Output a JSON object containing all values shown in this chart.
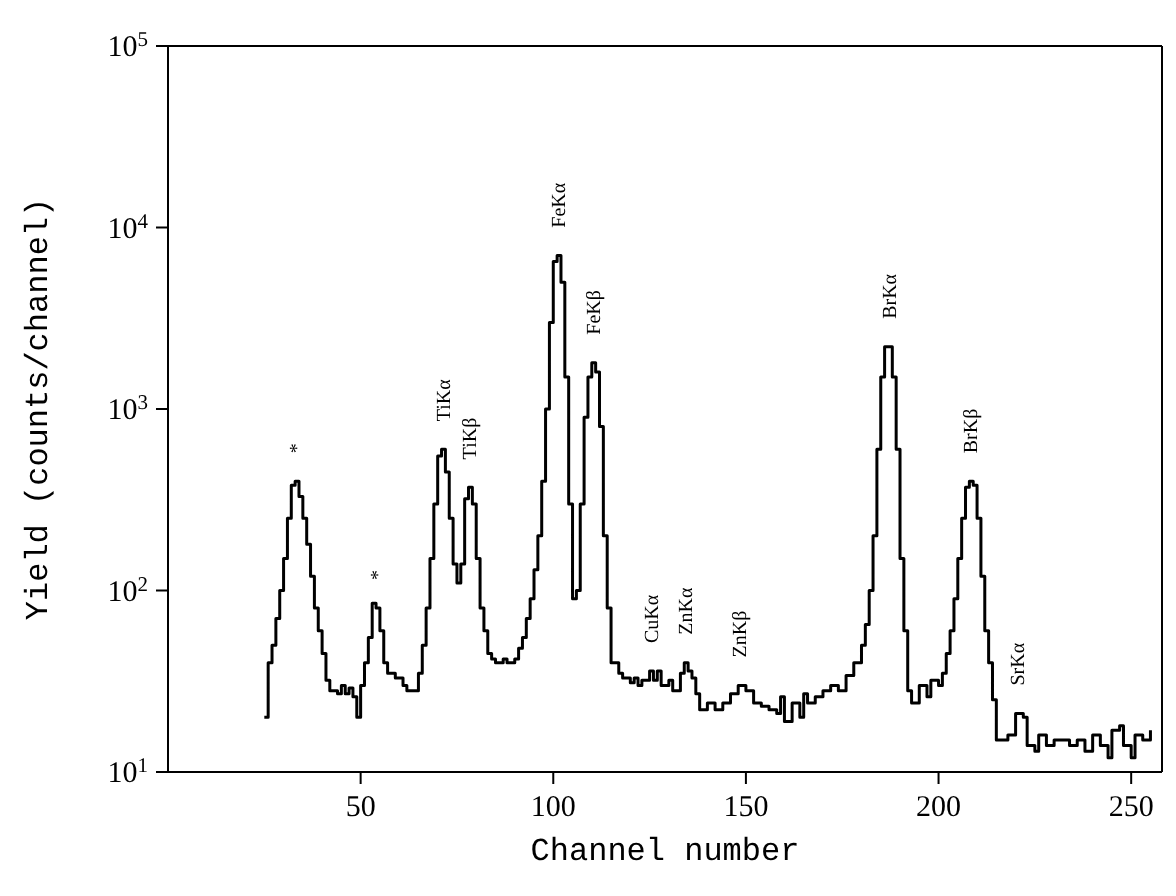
{
  "chart_data": {
    "type": "step",
    "xlabel": "Channel number",
    "ylabel": "Yield (counts/channel)",
    "log": "y",
    "marker": "none",
    "line_style": "solid",
    "xlim": [
      0,
      258
    ],
    "xticks": [
      50,
      100,
      150,
      200,
      250
    ],
    "ylim": [
      10,
      100000
    ],
    "yticks": [
      {
        "value": 10,
        "label": "10$^{1}$"
      },
      {
        "value": 100,
        "label": "10$^{2}$"
      },
      {
        "value": 1000,
        "label": "10$^{3}$"
      },
      {
        "value": 10000,
        "label": "10$^{4}$"
      },
      {
        "value": 100000,
        "label": "10$^{5}$"
      }
    ],
    "series": [
      {
        "color": "#000000",
        "x": [
          25,
          26,
          27,
          28,
          29,
          30,
          31,
          32,
          33,
          34,
          35,
          36,
          37,
          38,
          39,
          40,
          41,
          42,
          44,
          45,
          46,
          47,
          48,
          49,
          50,
          51,
          52,
          53,
          54,
          55,
          56,
          57,
          59,
          61,
          62,
          64,
          65,
          66,
          67,
          68,
          69,
          70,
          71,
          72,
          73,
          74,
          75,
          76,
          77,
          78,
          79,
          80,
          81,
          82,
          83,
          84,
          85,
          87,
          88,
          90,
          91,
          92,
          93,
          94,
          95,
          96,
          97,
          98,
          99,
          100,
          101,
          102,
          103,
          104,
          105,
          106,
          107,
          108,
          109,
          110,
          111,
          112,
          113,
          114,
          115,
          117,
          118,
          120,
          121,
          122,
          123,
          125,
          126,
          127,
          128,
          130,
          131,
          133,
          134,
          135,
          136,
          137,
          138,
          140,
          142,
          144,
          146,
          148,
          150,
          152,
          154,
          156,
          158,
          159,
          160,
          162,
          164,
          165,
          166,
          168,
          170,
          172,
          174,
          176,
          178,
          180,
          181,
          182,
          183,
          184,
          185,
          186,
          187,
          188,
          189,
          190,
          191,
          192,
          193,
          195,
          197,
          198,
          200,
          201,
          202,
          203,
          204,
          205,
          206,
          207,
          208,
          209,
          210,
          211,
          212,
          213,
          214,
          215,
          218,
          220,
          222,
          223,
          225,
          226,
          228,
          230,
          232,
          234,
          236,
          238,
          240,
          242,
          244,
          245,
          247,
          248,
          250,
          251,
          253,
          255
        ],
        "values": [
          20,
          40,
          50,
          70,
          100,
          150,
          250,
          380,
          400,
          330,
          250,
          180,
          120,
          80,
          60,
          45,
          32,
          28,
          27,
          30,
          27,
          29,
          26,
          20,
          30,
          40,
          55,
          85,
          80,
          60,
          40,
          35,
          33,
          30,
          28,
          28,
          35,
          50,
          80,
          150,
          300,
          550,
          600,
          450,
          250,
          140,
          110,
          140,
          320,
          370,
          300,
          150,
          80,
          60,
          45,
          42,
          40,
          42,
          40,
          42,
          48,
          55,
          70,
          90,
          130,
          200,
          400,
          1000,
          3000,
          6500,
          7000,
          5000,
          1500,
          300,
          90,
          100,
          300,
          900,
          1500,
          1800,
          1600,
          800,
          200,
          80,
          40,
          35,
          33,
          31,
          33,
          30,
          32,
          36,
          32,
          36,
          30,
          32,
          28,
          35,
          40,
          36,
          33,
          27,
          22,
          24,
          22,
          24,
          27,
          30,
          28,
          24,
          23,
          22,
          21,
          26,
          19,
          24,
          20,
          27,
          24,
          26,
          28,
          30,
          28,
          34,
          40,
          50,
          65,
          100,
          200,
          600,
          1500,
          2200,
          2200,
          1500,
          600,
          150,
          60,
          28,
          24,
          30,
          26,
          32,
          30,
          35,
          45,
          60,
          90,
          150,
          250,
          370,
          400,
          380,
          250,
          120,
          60,
          40,
          25,
          15,
          16,
          21,
          20,
          14,
          13,
          16,
          14,
          15,
          15,
          14,
          15,
          13,
          16,
          14,
          12,
          17,
          18,
          14,
          12,
          16,
          15,
          17
        ]
      }
    ],
    "annotations": [
      {
        "text": "*",
        "x": 33,
        "y": 400
      },
      {
        "text": "*",
        "x": 54,
        "y": 80
      },
      {
        "text": "TiKα",
        "x": 71,
        "y": 600
      },
      {
        "text": "TiKβ",
        "x": 78,
        "y": 370
      },
      {
        "text": "FeKα",
        "x": 101,
        "y": 7000
      },
      {
        "text": "FeKβ",
        "x": 110,
        "y": 1800
      },
      {
        "text": "CuKα",
        "x": 125,
        "y": 36
      },
      {
        "text": "ZnKα",
        "x": 134,
        "y": 40
      },
      {
        "text": "ZnKβ",
        "x": 148,
        "y": 30
      },
      {
        "text": "BrKα",
        "x": 187,
        "y": 2200
      },
      {
        "text": "BrKβ",
        "x": 208,
        "y": 400
      },
      {
        "text": "SrKα",
        "x": 220,
        "y": 21
      }
    ]
  }
}
